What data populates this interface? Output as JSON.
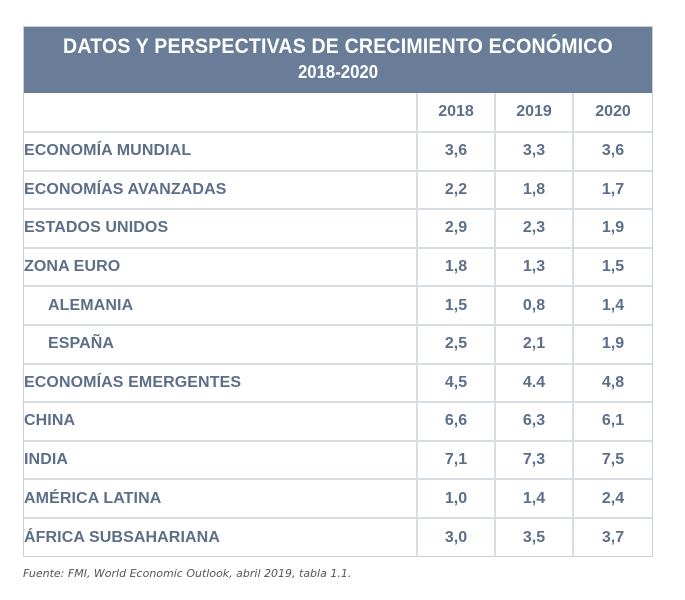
{
  "title": "DATOS Y PERSPECTIVAS DE CRECIMIENTO ECONÓMICO",
  "subtitle": "2018-2020",
  "source": "Fuente: FMI, World Economic Outlook, abril 2019, tabla 1.1.",
  "colors": {
    "header_bg": "#6a7d98",
    "text": "#5d6f88",
    "grid": "#d8dde4"
  },
  "chart_data": {
    "type": "table",
    "title": "DATOS Y PERSPECTIVAS DE CRECIMIENTO ECONÓMICO",
    "subtitle": "2018-2020",
    "columns": [
      "2018",
      "2019",
      "2020"
    ],
    "rows": [
      {
        "label": "ECONOMÍA MUNDIAL",
        "indent": false,
        "values": [
          "3,6",
          "3,3",
          "3,6"
        ]
      },
      {
        "label": "ECONOMÍAS AVANZADAS",
        "indent": false,
        "values": [
          "2,2",
          "1,8",
          "1,7"
        ]
      },
      {
        "label": "ESTADOS UNIDOS",
        "indent": false,
        "values": [
          "2,9",
          "2,3",
          "1,9"
        ]
      },
      {
        "label": "ZONA EURO",
        "indent": false,
        "values": [
          "1,8",
          "1,3",
          "1,5"
        ]
      },
      {
        "label": "ALEMANIA",
        "indent": true,
        "values": [
          "1,5",
          "0,8",
          "1,4"
        ]
      },
      {
        "label": "ESPAÑA",
        "indent": true,
        "values": [
          "2,5",
          "2,1",
          "1,9"
        ]
      },
      {
        "label": "ECONOMÍAS EMERGENTES",
        "indent": false,
        "values": [
          "4,5",
          "4.4",
          "4,8"
        ]
      },
      {
        "label": "CHINA",
        "indent": false,
        "values": [
          "6,6",
          "6,3",
          "6,1"
        ]
      },
      {
        "label": "INDIA",
        "indent": false,
        "values": [
          "7,1",
          "7,3",
          "7,5"
        ]
      },
      {
        "label": "AMÉRICA LATINA",
        "indent": false,
        "values": [
          "1,0",
          "1,4",
          "2,4"
        ]
      },
      {
        "label": "ÁFRICA SUBSAHARIANA",
        "indent": false,
        "values": [
          "3,0",
          "3,5",
          "3,7"
        ]
      }
    ]
  }
}
